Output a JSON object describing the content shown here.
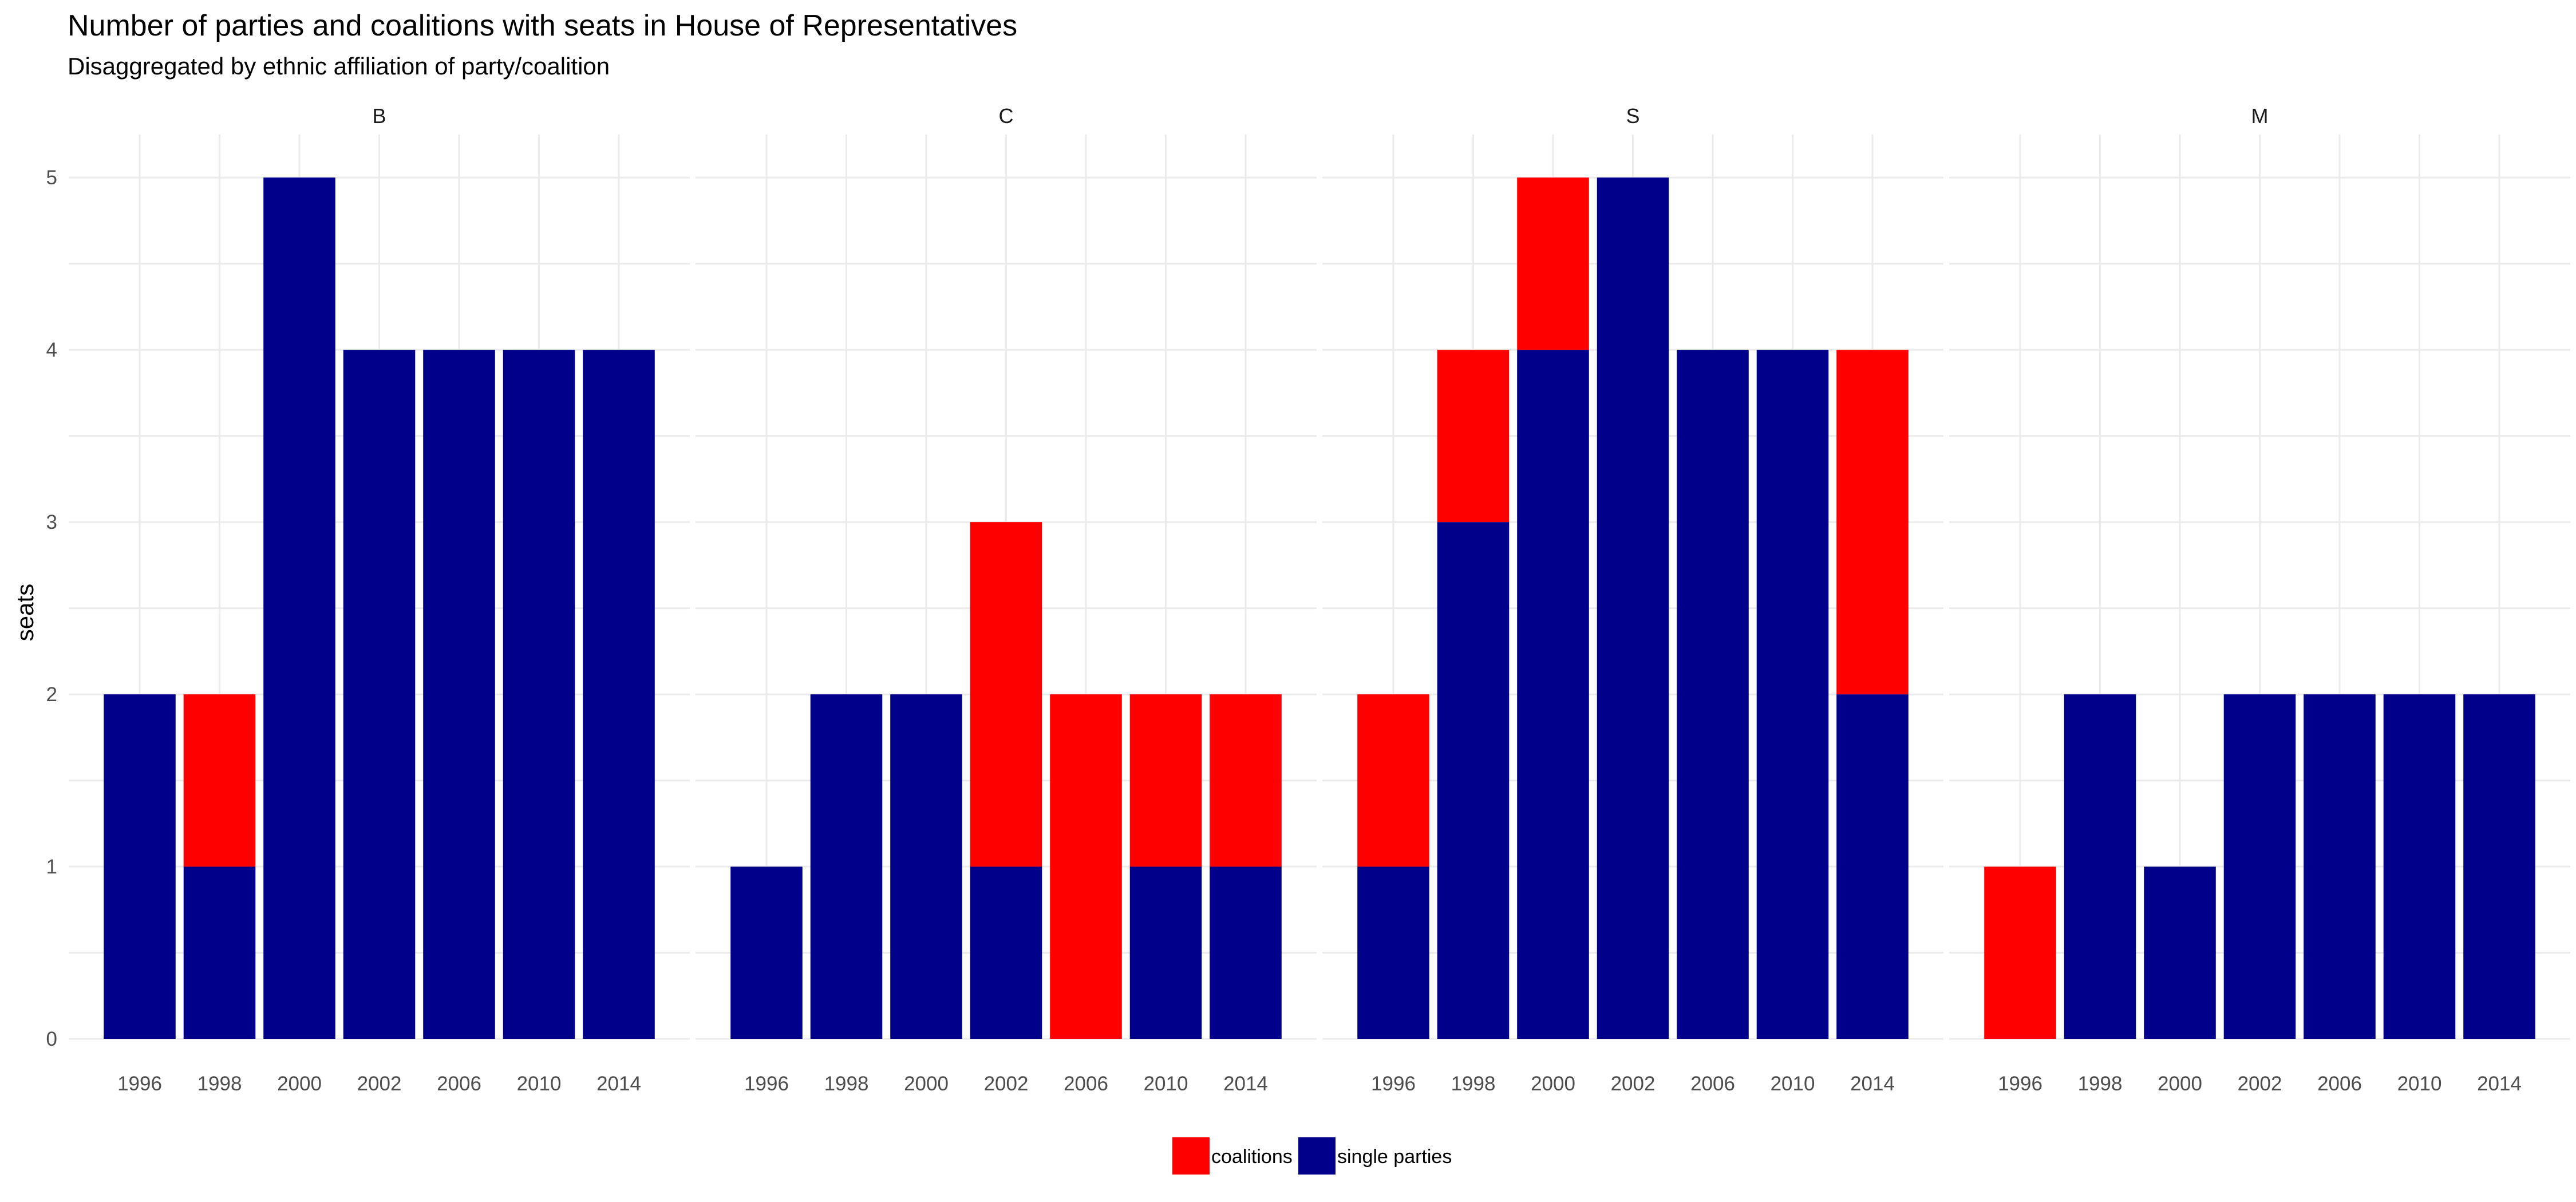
{
  "chart_data": {
    "type": "bar",
    "stacked": true,
    "title": "Number of parties and coalitions with seats in House of Representatives",
    "subtitle": "Disaggregated by ethnic affiliation of party/coalition",
    "xlabel": "",
    "ylabel": "seats",
    "ylim": [
      0,
      5.25
    ],
    "yticks": [
      0,
      1,
      2,
      3,
      4,
      5
    ],
    "grid": true,
    "legend_position": "bottom",
    "colors": {
      "coalitions": "#ff0000",
      "single parties": "#00008b"
    },
    "legend": [
      "coalitions",
      "single parties"
    ],
    "panels": [
      {
        "name": "B",
        "categories": [
          "1996",
          "1998",
          "2000",
          "2002",
          "2006",
          "2010",
          "2014"
        ],
        "series": [
          {
            "name": "single parties",
            "values": [
              2,
              1,
              5,
              4,
              4,
              4,
              4
            ]
          },
          {
            "name": "coalitions",
            "values": [
              0,
              1,
              0,
              0,
              0,
              0,
              0
            ]
          }
        ]
      },
      {
        "name": "C",
        "categories": [
          "1996",
          "1998",
          "2000",
          "2002",
          "2006",
          "2010",
          "2014"
        ],
        "series": [
          {
            "name": "single parties",
            "values": [
              1,
              2,
              2,
              1,
              0,
              1,
              1
            ]
          },
          {
            "name": "coalitions",
            "values": [
              0,
              0,
              0,
              2,
              2,
              1,
              1
            ]
          }
        ]
      },
      {
        "name": "S",
        "categories": [
          "1996",
          "1998",
          "2000",
          "2002",
          "2006",
          "2010",
          "2014"
        ],
        "series": [
          {
            "name": "single parties",
            "values": [
              1,
              3,
              4,
              5,
              4,
              4,
              2
            ]
          },
          {
            "name": "coalitions",
            "values": [
              1,
              1,
              1,
              0,
              0,
              0,
              2
            ]
          }
        ]
      },
      {
        "name": "M",
        "categories": [
          "1996",
          "1998",
          "2000",
          "2002",
          "2006",
          "2010",
          "2014"
        ],
        "series": [
          {
            "name": "single parties",
            "values": [
              0,
              2,
              1,
              2,
              2,
              2,
              2
            ]
          },
          {
            "name": "coalitions",
            "values": [
              1,
              0,
              0,
              0,
              0,
              0,
              0
            ]
          }
        ]
      }
    ]
  }
}
